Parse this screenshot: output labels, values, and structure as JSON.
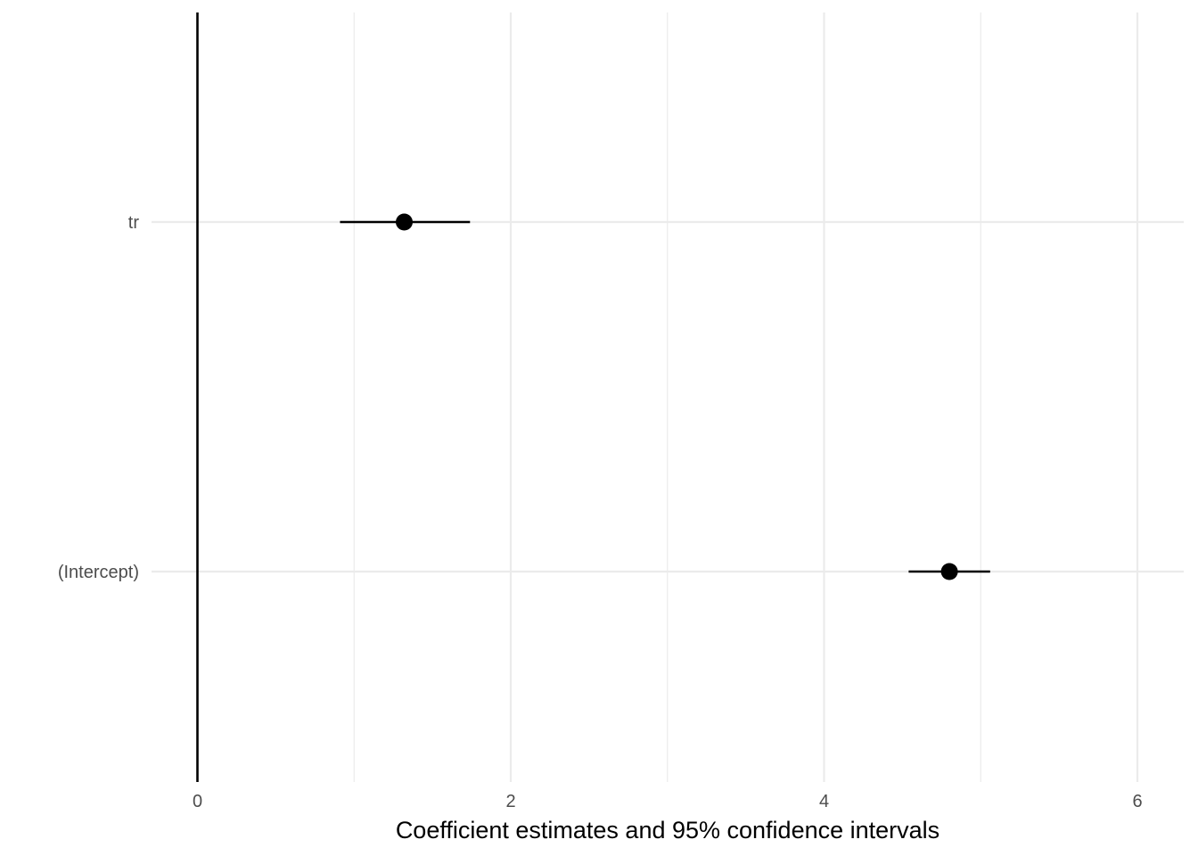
{
  "chart_data": {
    "type": "scatter",
    "xlabel": "Coefficient estimates and 95% confidence intervals",
    "ylabel": "",
    "xlim": [
      0,
      6.3
    ],
    "x_ticks": [
      0,
      2,
      4,
      6
    ],
    "x_tick_labels": [
      "0",
      "2",
      "4",
      "6"
    ],
    "grid": true,
    "reference_line_x": 0,
    "terms": [
      "tr",
      "(Intercept)"
    ],
    "estimates": [
      1.32,
      4.8
    ],
    "ci_low": [
      0.91,
      4.54
    ],
    "ci_high": [
      1.74,
      5.06
    ],
    "colors": {
      "point": "#000000",
      "grid": "#ebebeb",
      "reference_line": "#000000"
    }
  }
}
